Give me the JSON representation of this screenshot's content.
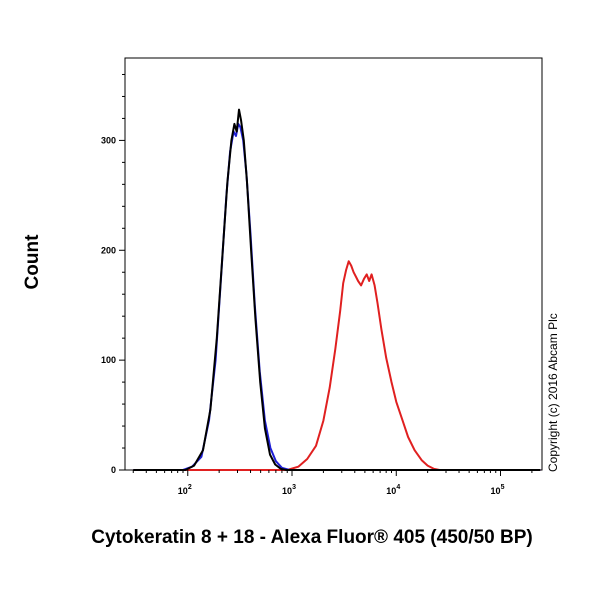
{
  "chart_data": {
    "type": "area",
    "xlabel": "Cytokeratin 8 + 18 - Alexa Fluor® 405 (450/50 BP)",
    "ylabel": "Count",
    "xscale": "log",
    "xlim": [
      25,
      250000
    ],
    "ylim": [
      0,
      375
    ],
    "grid": false,
    "x_ticks": [
      {
        "base": "10",
        "exp": "2",
        "value": 100
      },
      {
        "base": "10",
        "exp": "3",
        "value": 1000
      },
      {
        "base": "10",
        "exp": "4",
        "value": 10000
      },
      {
        "base": "10",
        "exp": "5",
        "value": 100000
      }
    ],
    "y_ticks": [
      {
        "label": "0",
        "value": 0
      },
      {
        "label": "100",
        "value": 100
      },
      {
        "label": "200",
        "value": 200
      },
      {
        "label": "300",
        "value": 300
      }
    ],
    "annotation": "Copyright (c) 2016 Abcam Plc",
    "series": [
      {
        "color": "#e02020",
        "points": [
          [
            30,
            0
          ],
          [
            900,
            0
          ],
          [
            1150,
            3
          ],
          [
            1400,
            10
          ],
          [
            1700,
            22
          ],
          [
            2000,
            45
          ],
          [
            2300,
            75
          ],
          [
            2600,
            110
          ],
          [
            2900,
            145
          ],
          [
            3100,
            170
          ],
          [
            3300,
            182
          ],
          [
            3500,
            190
          ],
          [
            3700,
            186
          ],
          [
            3900,
            180
          ],
          [
            4100,
            176
          ],
          [
            4300,
            172
          ],
          [
            4600,
            168
          ],
          [
            4900,
            174
          ],
          [
            5200,
            178
          ],
          [
            5500,
            172
          ],
          [
            5800,
            178
          ],
          [
            6200,
            168
          ],
          [
            6600,
            152
          ],
          [
            7200,
            128
          ],
          [
            8000,
            102
          ],
          [
            9000,
            80
          ],
          [
            10000,
            62
          ],
          [
            11500,
            45
          ],
          [
            13000,
            30
          ],
          [
            15000,
            18
          ],
          [
            17500,
            9
          ],
          [
            20000,
            4
          ],
          [
            23000,
            1
          ],
          [
            26000,
            0
          ],
          [
            240000,
            0
          ]
        ]
      },
      {
        "color": "#1f1fd6",
        "points": [
          [
            30,
            0
          ],
          [
            90,
            0
          ],
          [
            110,
            3
          ],
          [
            135,
            12
          ],
          [
            160,
            45
          ],
          [
            185,
            100
          ],
          [
            210,
            180
          ],
          [
            235,
            250
          ],
          [
            255,
            290
          ],
          [
            275,
            308
          ],
          [
            290,
            304
          ],
          [
            305,
            315
          ],
          [
            320,
            312
          ],
          [
            340,
            300
          ],
          [
            365,
            270
          ],
          [
            400,
            215
          ],
          [
            440,
            150
          ],
          [
            490,
            90
          ],
          [
            550,
            45
          ],
          [
            620,
            20
          ],
          [
            700,
            8
          ],
          [
            800,
            2
          ],
          [
            950,
            0
          ],
          [
            240000,
            0
          ]
        ]
      },
      {
        "color": "#000000",
        "points": [
          [
            30,
            0
          ],
          [
            95,
            0
          ],
          [
            115,
            4
          ],
          [
            140,
            18
          ],
          [
            165,
            55
          ],
          [
            190,
            120
          ],
          [
            215,
            195
          ],
          [
            240,
            262
          ],
          [
            262,
            300
          ],
          [
            280,
            315
          ],
          [
            295,
            308
          ],
          [
            310,
            328
          ],
          [
            325,
            318
          ],
          [
            345,
            300
          ],
          [
            370,
            262
          ],
          [
            405,
            200
          ],
          [
            445,
            138
          ],
          [
            495,
            80
          ],
          [
            550,
            38
          ],
          [
            615,
            14
          ],
          [
            690,
            5
          ],
          [
            780,
            1
          ],
          [
            880,
            0
          ],
          [
            240000,
            0
          ]
        ]
      }
    ]
  }
}
